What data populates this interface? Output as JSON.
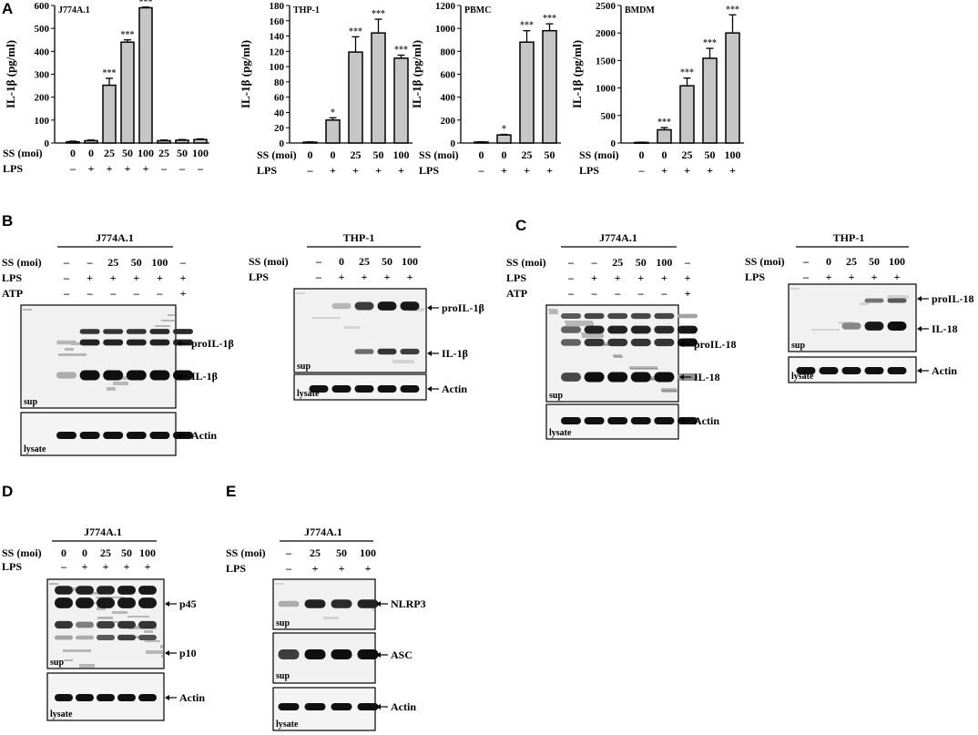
{
  "panel_labels": {
    "A": "A",
    "B": "B",
    "C": "C",
    "D": "D",
    "E": "E"
  },
  "row_labels": {
    "ss": "SS (moi)",
    "lps": "LPS",
    "atp": "ATP"
  },
  "chart_data": [
    {
      "type": "bar",
      "title": "J774A.1",
      "ylabel": "IL-1β (pg/ml)",
      "ylim": [
        0,
        600
      ],
      "yticks": [
        0,
        100,
        200,
        300,
        400,
        500,
        600
      ],
      "categories": [
        "0",
        "0",
        "25",
        "50",
        "100",
        "25",
        "50",
        "100"
      ],
      "lps": [
        "–",
        "+",
        "+",
        "+",
        "+",
        "–",
        "–",
        "–"
      ],
      "values": [
        5,
        10,
        252,
        440,
        590,
        10,
        12,
        15
      ],
      "errors": [
        3,
        3,
        30,
        10,
        3,
        3,
        3,
        3
      ],
      "significance": [
        "",
        "",
        "***",
        "***",
        "***",
        "",
        "",
        ""
      ]
    },
    {
      "type": "bar",
      "title": "THP-1",
      "ylabel": "IL-1β (pg/ml)",
      "ylim": [
        0,
        180
      ],
      "yticks": [
        0,
        20,
        40,
        60,
        80,
        100,
        120,
        140,
        160,
        180
      ],
      "categories": [
        "0",
        "0",
        "25",
        "50",
        "100"
      ],
      "lps": [
        "–",
        "+",
        "+",
        "+",
        "+"
      ],
      "values": [
        1,
        30,
        119,
        144,
        111
      ],
      "errors": [
        0.5,
        3,
        20,
        18,
        4
      ],
      "significance": [
        "",
        "*",
        "***",
        "***",
        "***"
      ]
    },
    {
      "type": "bar",
      "title": "PBMC",
      "ylabel": "IL-1β (pg/ml)",
      "ylim": [
        0,
        1200
      ],
      "yticks": [
        0,
        200,
        400,
        600,
        800,
        1000,
        1200
      ],
      "categories": [
        "0",
        "0",
        "25",
        "50"
      ],
      "lps": [
        "–",
        "+",
        "+",
        "+"
      ],
      "values": [
        8,
        70,
        880,
        980
      ],
      "errors": [
        2,
        5,
        100,
        60
      ],
      "significance": [
        "",
        "*",
        "***",
        "***"
      ]
    },
    {
      "type": "bar",
      "title": "BMDM",
      "ylabel": "IL-1β (pg/ml)",
      "ylim": [
        0,
        2500
      ],
      "yticks": [
        0,
        500,
        1000,
        1500,
        2000,
        2500
      ],
      "categories": [
        "0",
        "0",
        "25",
        "50",
        "100"
      ],
      "lps": [
        "–",
        "+",
        "+",
        "+",
        "+"
      ],
      "values": [
        10,
        240,
        1040,
        1540,
        2000
      ],
      "errors": [
        5,
        40,
        140,
        180,
        330
      ],
      "significance": [
        "",
        "***",
        "***",
        "***",
        "***"
      ]
    }
  ],
  "blots": {
    "B1": {
      "title": "J774A.1",
      "ss": [
        "–",
        "–",
        "25",
        "50",
        "100",
        "–"
      ],
      "lps": [
        "–",
        "+",
        "+",
        "+",
        "+",
        "+"
      ],
      "atp": [
        "–",
        "–",
        "–",
        "–",
        "–",
        "+"
      ],
      "sup_tag": "sup",
      "lysate_tag": "lysate",
      "bands": [
        "proIL-1β",
        "IL-1β"
      ],
      "loading": "Actin"
    },
    "B2": {
      "title": "THP-1",
      "ss": [
        "–",
        "0",
        "25",
        "50",
        "100"
      ],
      "lps": [
        "–",
        "+",
        "+",
        "+",
        "+"
      ],
      "sup_tag": "sup",
      "lysate_tag": "lysate",
      "bands": [
        "proIL-1β",
        "IL-1β"
      ],
      "loading": "Actin"
    },
    "C1": {
      "title": "J774A.1",
      "ss": [
        "–",
        "–",
        "25",
        "50",
        "100",
        "–"
      ],
      "lps": [
        "–",
        "+",
        "+",
        "+",
        "+",
        "+"
      ],
      "atp": [
        "–",
        "–",
        "–",
        "–",
        "–",
        "+"
      ],
      "sup_tag": "sup",
      "lysate_tag": "lysate",
      "bands": [
        "proIL-18",
        "IL-18"
      ],
      "loading": "Actin"
    },
    "C2": {
      "title": "THP-1",
      "ss": [
        "–",
        "0",
        "25",
        "50",
        "100"
      ],
      "lps": [
        "–",
        "+",
        "+",
        "+",
        "+"
      ],
      "sup_tag": "sup",
      "lysate_tag": "lysate",
      "bands": [
        "proIL-18",
        "IL-18"
      ],
      "loading": "Actin"
    },
    "D": {
      "title": "J774A.1",
      "ss": [
        "0",
        "0",
        "25",
        "50",
        "100"
      ],
      "lps": [
        "–",
        "+",
        "+",
        "+",
        "+"
      ],
      "sup_tag": "sup",
      "lysate_tag": "lysate",
      "bands": [
        "p45",
        "p10"
      ],
      "loading": "Actin"
    },
    "E": {
      "title": "J774A.1",
      "ss": [
        "–",
        "25",
        "50",
        "100"
      ],
      "lps": [
        "–",
        "+",
        "+",
        "+"
      ],
      "sup_tag": "sup",
      "lysate_tag": "lysate",
      "bands": [
        "NLRP3",
        "ASC"
      ],
      "loading": "Actin"
    }
  }
}
